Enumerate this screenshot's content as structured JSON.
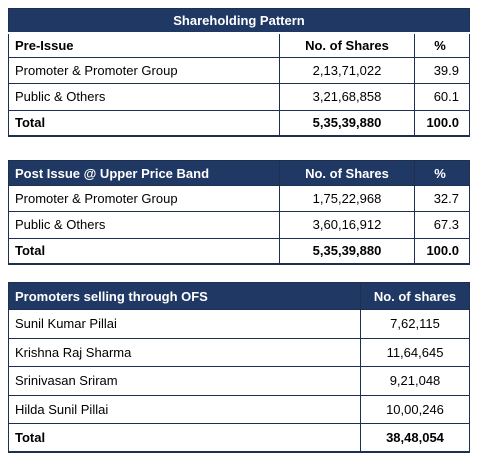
{
  "tables": [
    {
      "title": "Shareholding Pattern",
      "header": [
        "Pre-Issue",
        "No. of Shares",
        "%"
      ],
      "rows": [
        [
          "Promoter & Promoter Group",
          "2,13,71,022",
          "39.9"
        ],
        [
          "Public & Others",
          "3,21,68,858",
          "60.1"
        ],
        [
          "Total",
          "5,35,39,880",
          "100.0"
        ]
      ]
    },
    {
      "header": [
        "Post Issue @ Upper Price Band",
        "No. of Shares",
        "%"
      ],
      "rows": [
        [
          "Promoter & Promoter Group",
          "1,75,22,968",
          "32.7"
        ],
        [
          "Public & Others",
          "3,60,16,912",
          "67.3"
        ],
        [
          "Total",
          "5,35,39,880",
          "100.0"
        ]
      ]
    },
    {
      "header": [
        "Promoters selling through OFS",
        "No. of shares"
      ],
      "rows": [
        [
          "Sunil Kumar Pillai",
          "7,62,115"
        ],
        [
          "Krishna Raj Sharma",
          "11,64,645"
        ],
        [
          "Srinivasan Sriram",
          "9,21,048"
        ],
        [
          "Hilda Sunil Pillai",
          "10,00,246"
        ],
        [
          "Total",
          "38,48,054"
        ]
      ]
    }
  ]
}
